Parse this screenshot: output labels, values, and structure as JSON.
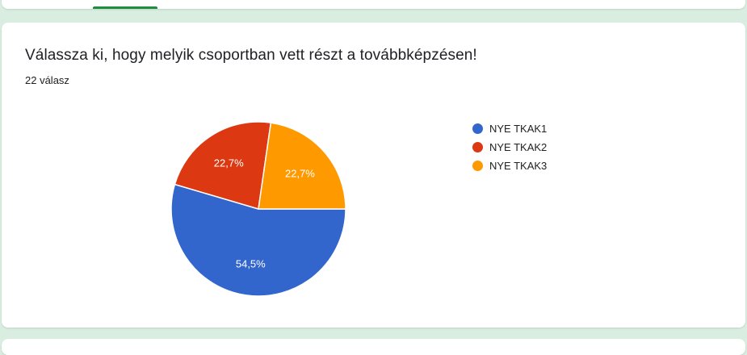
{
  "question": {
    "title": "Válassza ki, hogy melyik csoportban vett részt a továbbképzésen!",
    "response_count": "22 válasz"
  },
  "chart_data": {
    "type": "pie",
    "categories": [
      "NYE TKAK1",
      "NYE TKAK2",
      "NYE TKAK3"
    ],
    "values": [
      54.5,
      22.7,
      22.7
    ],
    "labels": [
      "54,5%",
      "22,7%",
      "22,7%"
    ],
    "colors": [
      "#3366cc",
      "#dc3912",
      "#ff9900"
    ],
    "legend_position": "right"
  }
}
